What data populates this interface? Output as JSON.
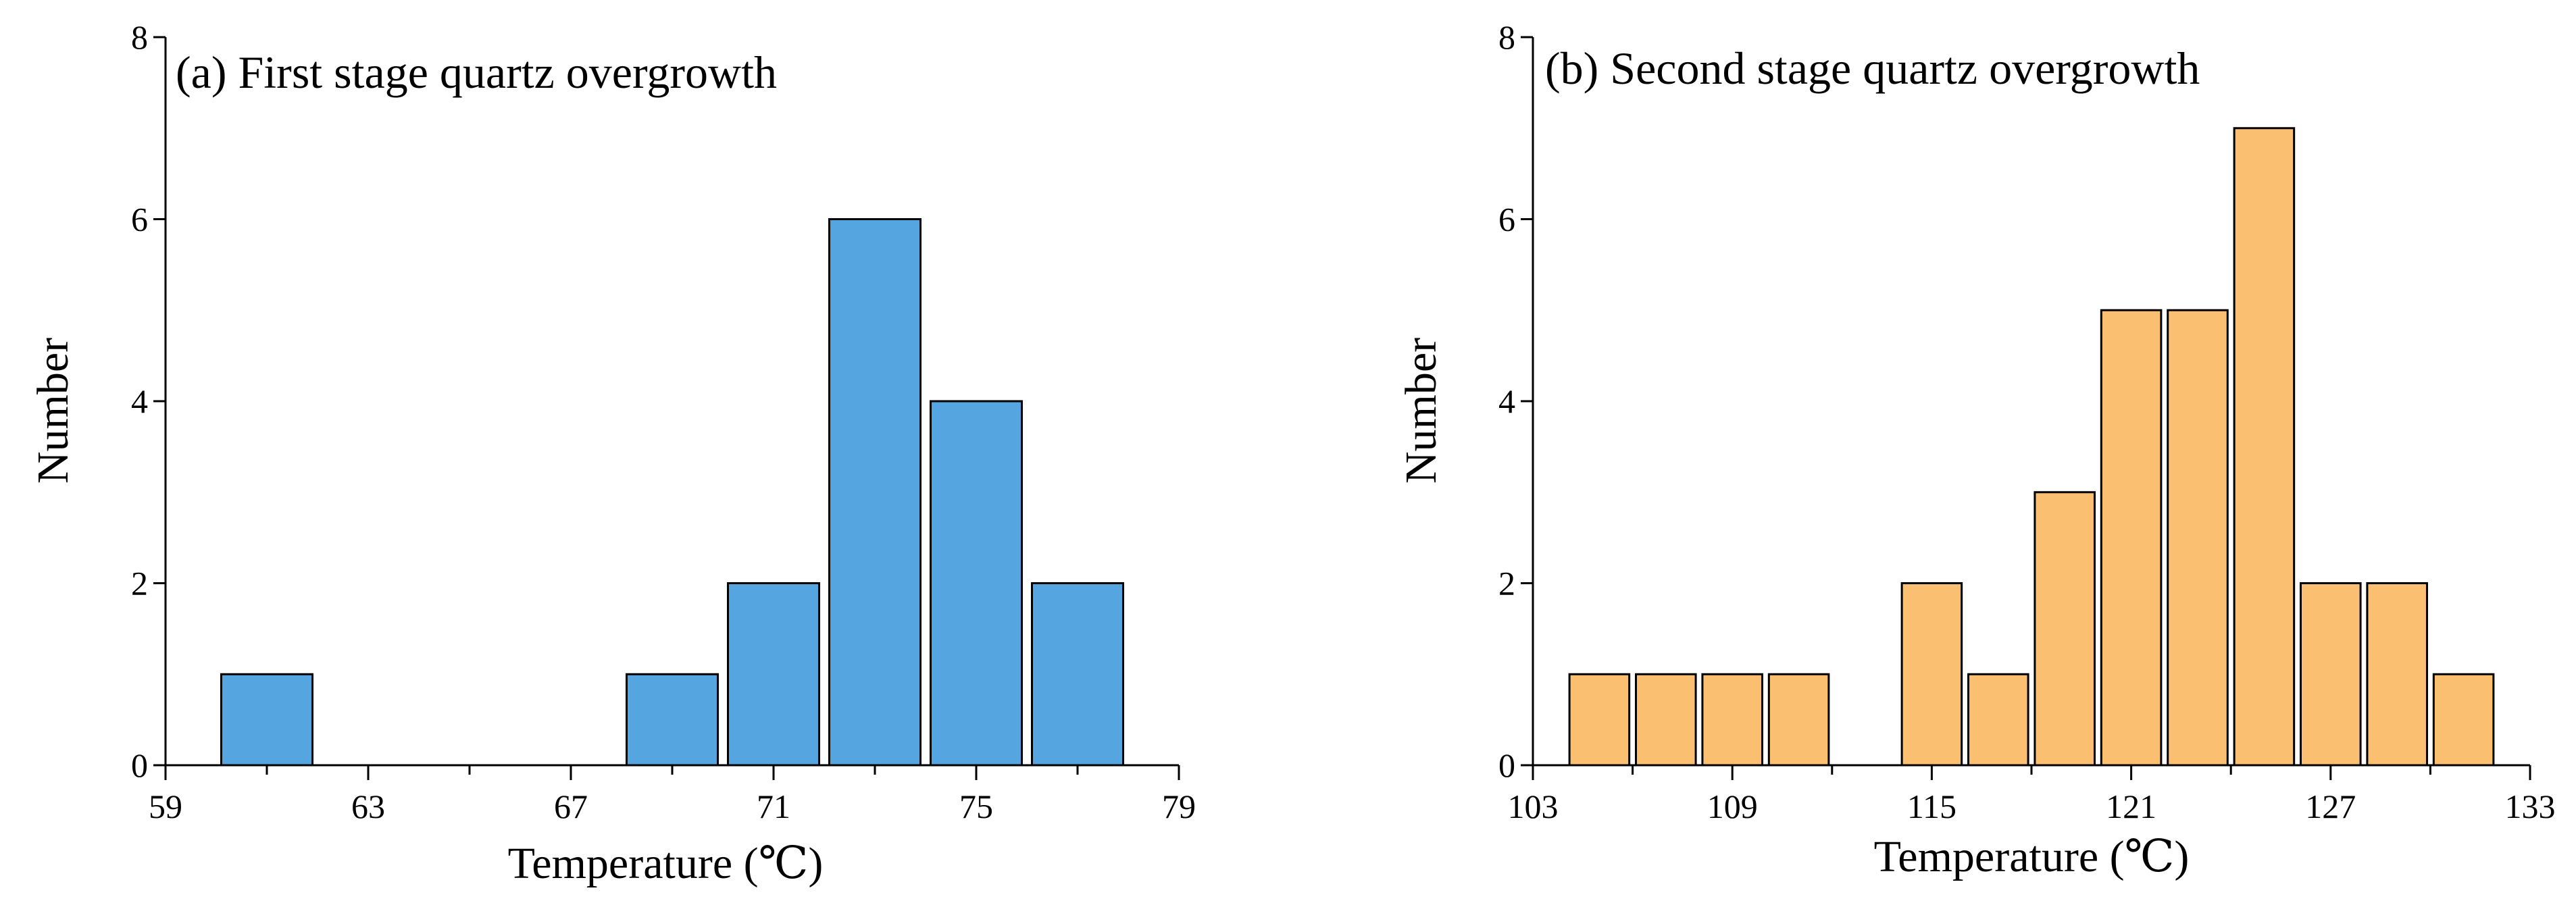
{
  "chart_data": [
    {
      "type": "bar",
      "title": "(a) First stage quartz overgrowth",
      "xlabel": "Temperature (℃)",
      "ylabel": "Number",
      "xlim": [
        59,
        79
      ],
      "ylim": [
        0,
        8
      ],
      "x_ticks": [
        59,
        61,
        63,
        65,
        67,
        69,
        71,
        73,
        75,
        77,
        79
      ],
      "x_tick_labels": [
        "59",
        "63",
        "67",
        "71",
        "75",
        "79"
      ],
      "y_ticks": [
        0,
        2,
        4,
        6,
        8
      ],
      "bin_width": 2,
      "bar_fill": "#55a6e0",
      "bins": [
        {
          "start": 60,
          "end": 62,
          "value": 1
        },
        {
          "start": 68,
          "end": 70,
          "value": 1
        },
        {
          "start": 70,
          "end": 72,
          "value": 2
        },
        {
          "start": 72,
          "end": 74,
          "value": 6
        },
        {
          "start": 74,
          "end": 76,
          "value": 4
        },
        {
          "start": 76,
          "end": 78,
          "value": 2
        }
      ]
    },
    {
      "type": "bar",
      "title": "(b) Second stage quartz overgrowth",
      "xlabel": "Temperature (℃)",
      "ylabel": "Number",
      "xlim": [
        103,
        133
      ],
      "ylim": [
        0,
        8
      ],
      "x_ticks": [
        103,
        106,
        109,
        112,
        115,
        118,
        121,
        124,
        127,
        130,
        133
      ],
      "x_tick_labels": [
        "103",
        "109",
        "115",
        "121",
        "127",
        "133"
      ],
      "y_ticks": [
        0,
        2,
        4,
        6,
        8
      ],
      "bin_width": 2,
      "bar_fill": "#fbbf72",
      "bins": [
        {
          "start": 104,
          "end": 106,
          "value": 1
        },
        {
          "start": 106,
          "end": 108,
          "value": 1
        },
        {
          "start": 108,
          "end": 110,
          "value": 1
        },
        {
          "start": 110,
          "end": 112,
          "value": 1
        },
        {
          "start": 114,
          "end": 116,
          "value": 2
        },
        {
          "start": 116,
          "end": 118,
          "value": 1
        },
        {
          "start": 118,
          "end": 120,
          "value": 3
        },
        {
          "start": 120,
          "end": 122,
          "value": 5
        },
        {
          "start": 122,
          "end": 124,
          "value": 5
        },
        {
          "start": 124,
          "end": 126,
          "value": 7
        },
        {
          "start": 126,
          "end": 128,
          "value": 2
        },
        {
          "start": 128,
          "end": 130,
          "value": 2
        },
        {
          "start": 130,
          "end": 132,
          "value": 1
        }
      ]
    }
  ]
}
